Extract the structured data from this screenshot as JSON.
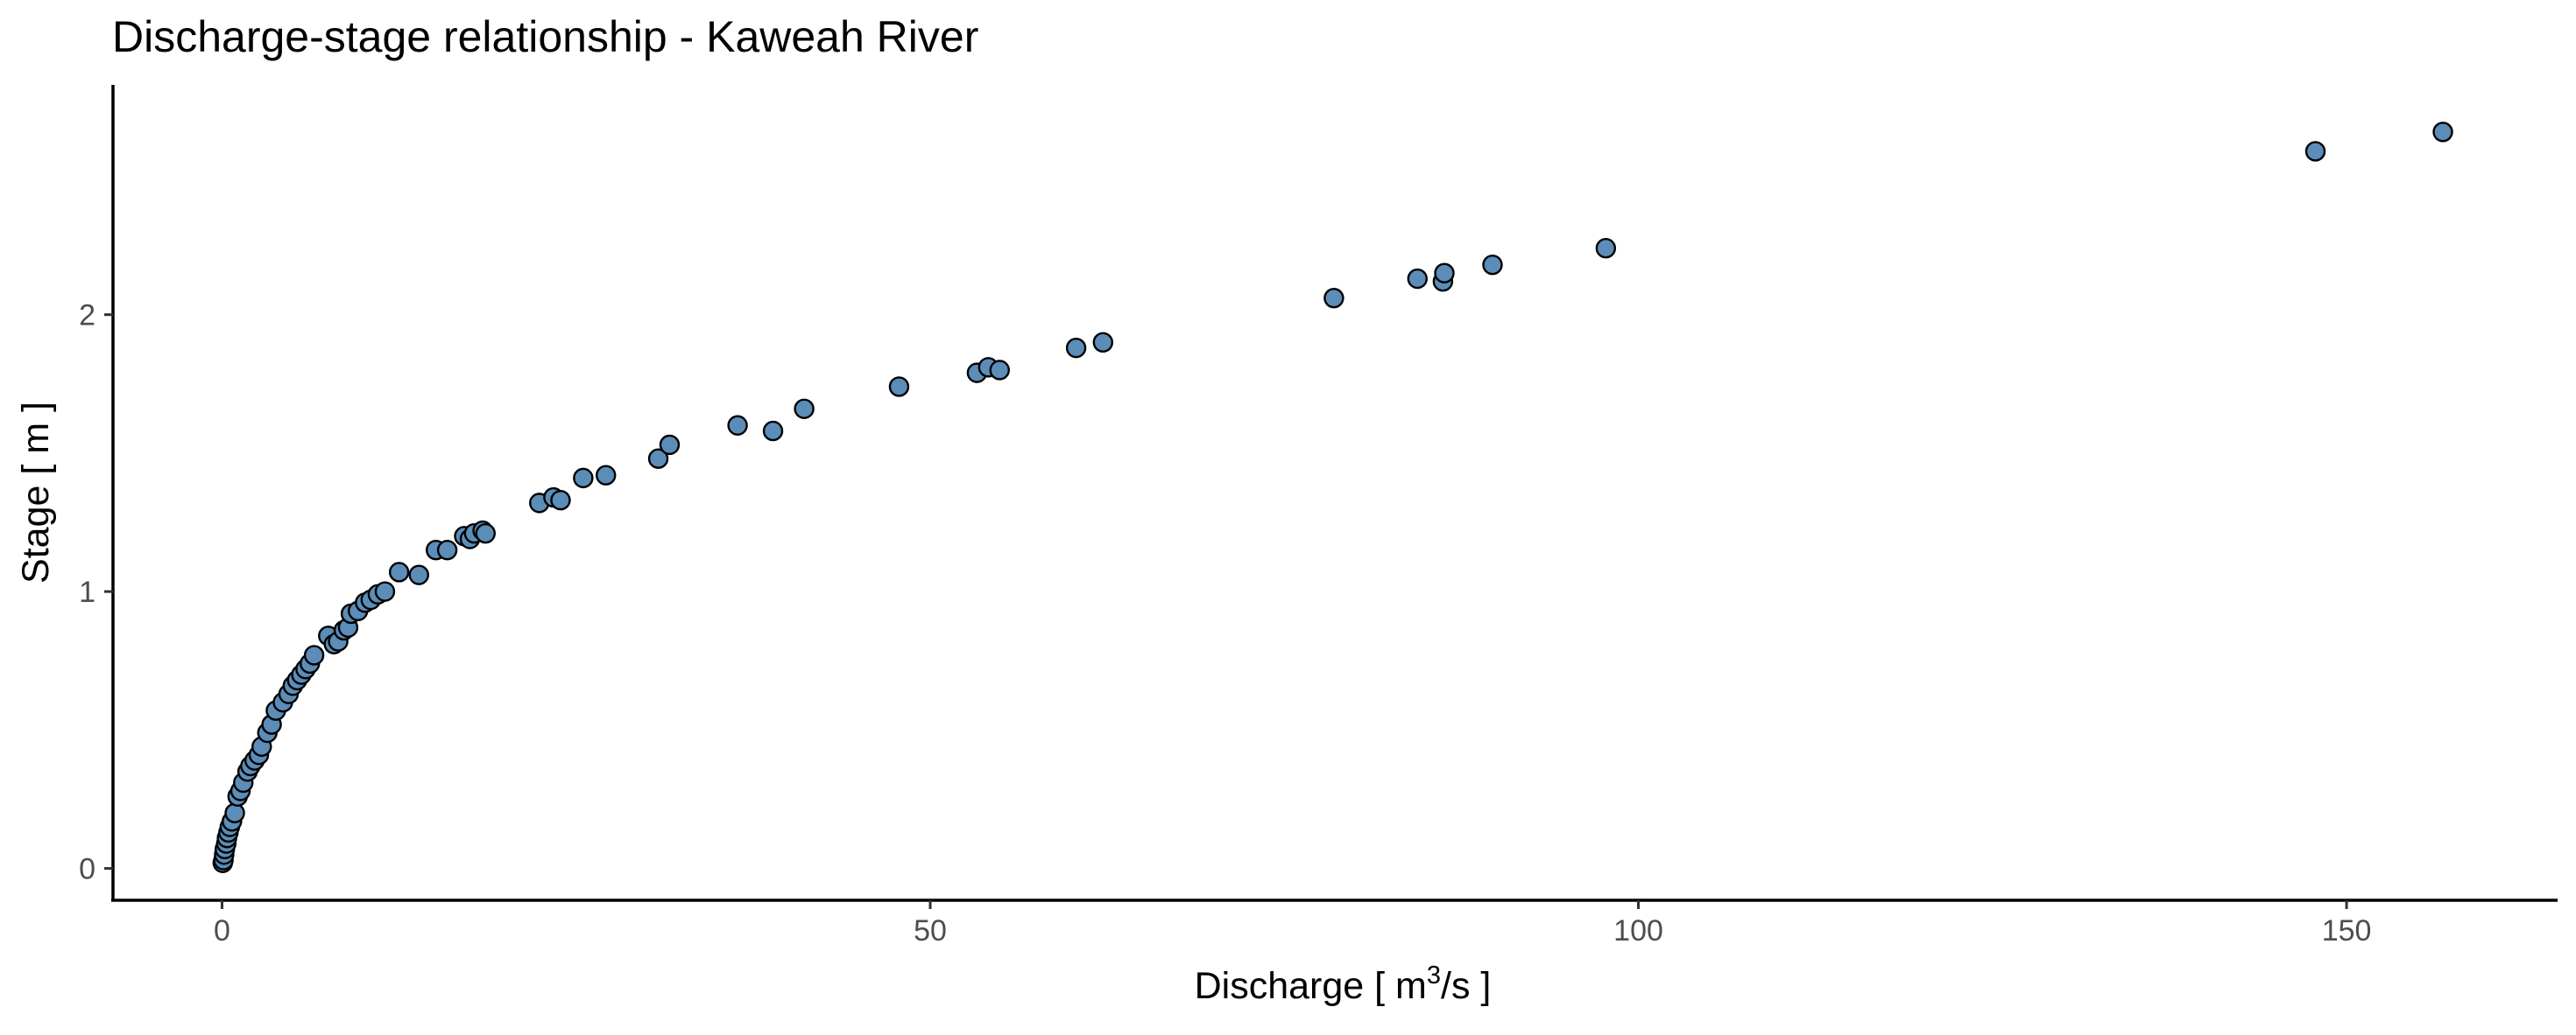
{
  "chart_data": {
    "type": "scatter",
    "title": "Discharge-stage relationship - Kaweah River",
    "xlabel": {
      "pre": "Discharge  [ m",
      "sup": "3",
      "post": "/s ]"
    },
    "ylabel": "Stage  [ m ]",
    "xlim": [
      -7.7,
      164.9
    ],
    "ylim": [
      -0.115,
      2.83
    ],
    "x_ticks": [
      {
        "value": 0,
        "label": "0"
      },
      {
        "value": 50,
        "label": "50"
      },
      {
        "value": 100,
        "label": "100"
      },
      {
        "value": 150,
        "label": "150"
      }
    ],
    "y_ticks": [
      {
        "value": 0,
        "label": "0"
      },
      {
        "value": 1,
        "label": "1"
      },
      {
        "value": 2,
        "label": "2"
      }
    ],
    "grid": false,
    "point_fill": "#5b8db8",
    "point_stroke": "#000000",
    "points": [
      {
        "x": 0.05,
        "y": 0.02
      },
      {
        "x": 0.1,
        "y": 0.03
      },
      {
        "x": 0.15,
        "y": 0.05
      },
      {
        "x": 0.2,
        "y": 0.07
      },
      {
        "x": 0.3,
        "y": 0.09
      },
      {
        "x": 0.35,
        "y": 0.11
      },
      {
        "x": 0.45,
        "y": 0.13
      },
      {
        "x": 0.55,
        "y": 0.15
      },
      {
        "x": 0.7,
        "y": 0.17
      },
      {
        "x": 0.9,
        "y": 0.2
      },
      {
        "x": 1.1,
        "y": 0.26
      },
      {
        "x": 1.3,
        "y": 0.28
      },
      {
        "x": 1.5,
        "y": 0.31
      },
      {
        "x": 1.8,
        "y": 0.35
      },
      {
        "x": 2.0,
        "y": 0.37
      },
      {
        "x": 2.3,
        "y": 0.39
      },
      {
        "x": 2.6,
        "y": 0.41
      },
      {
        "x": 2.8,
        "y": 0.44
      },
      {
        "x": 3.2,
        "y": 0.49
      },
      {
        "x": 3.5,
        "y": 0.52
      },
      {
        "x": 3.8,
        "y": 0.57
      },
      {
        "x": 4.3,
        "y": 0.6
      },
      {
        "x": 4.7,
        "y": 0.63
      },
      {
        "x": 5.0,
        "y": 0.66
      },
      {
        "x": 5.3,
        "y": 0.68
      },
      {
        "x": 5.6,
        "y": 0.7
      },
      {
        "x": 5.9,
        "y": 0.72
      },
      {
        "x": 6.2,
        "y": 0.74
      },
      {
        "x": 6.5,
        "y": 0.77
      },
      {
        "x": 7.5,
        "y": 0.84
      },
      {
        "x": 7.9,
        "y": 0.81
      },
      {
        "x": 8.2,
        "y": 0.82
      },
      {
        "x": 8.6,
        "y": 0.86
      },
      {
        "x": 8.9,
        "y": 0.87
      },
      {
        "x": 9.1,
        "y": 0.92
      },
      {
        "x": 9.6,
        "y": 0.93
      },
      {
        "x": 10.1,
        "y": 0.96
      },
      {
        "x": 10.5,
        "y": 0.97
      },
      {
        "x": 11.0,
        "y": 0.99
      },
      {
        "x": 11.5,
        "y": 1.0
      },
      {
        "x": 12.5,
        "y": 1.07
      },
      {
        "x": 13.9,
        "y": 1.06
      },
      {
        "x": 15.1,
        "y": 1.15
      },
      {
        "x": 15.9,
        "y": 1.15
      },
      {
        "x": 17.1,
        "y": 1.2
      },
      {
        "x": 17.5,
        "y": 1.19
      },
      {
        "x": 17.8,
        "y": 1.21
      },
      {
        "x": 18.4,
        "y": 1.22
      },
      {
        "x": 18.6,
        "y": 1.21
      },
      {
        "x": 22.4,
        "y": 1.32
      },
      {
        "x": 23.4,
        "y": 1.34
      },
      {
        "x": 23.9,
        "y": 1.33
      },
      {
        "x": 25.5,
        "y": 1.41
      },
      {
        "x": 27.1,
        "y": 1.42
      },
      {
        "x": 30.8,
        "y": 1.48
      },
      {
        "x": 31.6,
        "y": 1.53
      },
      {
        "x": 36.4,
        "y": 1.6
      },
      {
        "x": 38.9,
        "y": 1.58
      },
      {
        "x": 41.1,
        "y": 1.66
      },
      {
        "x": 47.8,
        "y": 1.74
      },
      {
        "x": 53.3,
        "y": 1.79
      },
      {
        "x": 54.1,
        "y": 1.81
      },
      {
        "x": 54.9,
        "y": 1.8
      },
      {
        "x": 60.3,
        "y": 1.88
      },
      {
        "x": 62.2,
        "y": 1.9
      },
      {
        "x": 78.5,
        "y": 2.06
      },
      {
        "x": 84.4,
        "y": 2.13
      },
      {
        "x": 86.2,
        "y": 2.12
      },
      {
        "x": 86.3,
        "y": 2.15
      },
      {
        "x": 89.7,
        "y": 2.18
      },
      {
        "x": 97.7,
        "y": 2.24
      },
      {
        "x": 147.8,
        "y": 2.59
      },
      {
        "x": 156.8,
        "y": 2.66
      }
    ]
  }
}
